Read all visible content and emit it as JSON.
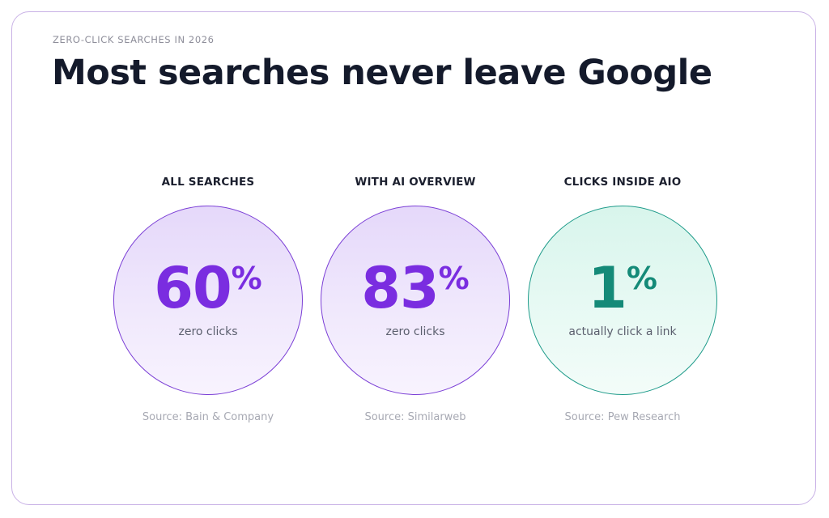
{
  "header": {
    "eyebrow": "ZERO-CLICK SEARCHES IN 2026",
    "title": "Most searches never leave Google"
  },
  "colors": {
    "purple_accent": "#7a2de0",
    "green_accent": "#148a78",
    "card_border": "#c9b2e6"
  },
  "stats": [
    {
      "label": "ALL SEARCHES",
      "value": "60",
      "unit": "%",
      "caption": "zero clicks",
      "source": "Source: Bain & Company"
    },
    {
      "label": "WITH AI OVERVIEW",
      "value": "83",
      "unit": "%",
      "caption": "zero clicks",
      "source": "Source: Similarweb"
    },
    {
      "label": "CLICKS INSIDE AIO",
      "value": "1",
      "unit": "%",
      "caption": "actually click a link",
      "source": "Source: Pew Research"
    }
  ]
}
